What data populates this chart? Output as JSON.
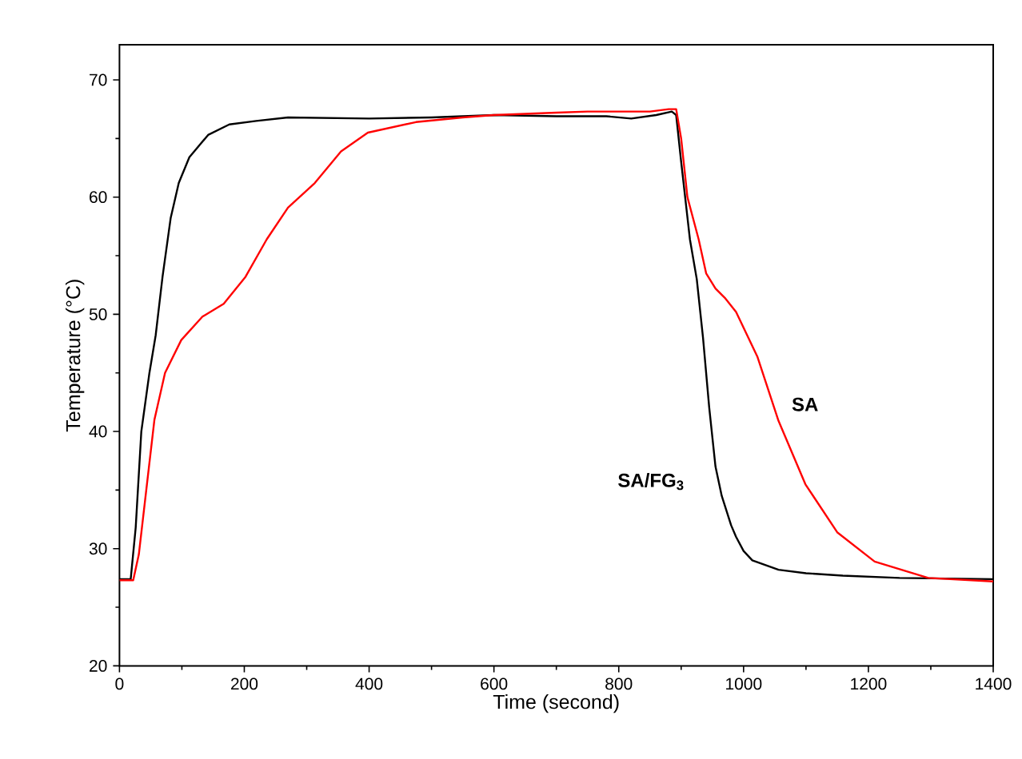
{
  "chart_data": {
    "type": "line",
    "xlabel": "Time (second)",
    "ylabel": "Temperature (°C)",
    "xlim": [
      0,
      1400
    ],
    "ylim": [
      20,
      73
    ],
    "xticks": [
      0,
      200,
      400,
      600,
      800,
      1000,
      1200,
      1400
    ],
    "yticks": [
      20,
      30,
      40,
      50,
      60,
      70
    ],
    "grid": false,
    "marker": "none",
    "line_style": "solid",
    "series": [
      {
        "name": "SA/FG$_{3}$",
        "color": "#000000",
        "x": [
          0,
          18,
          26,
          35,
          48,
          58,
          69,
          82,
          95,
          112,
          142,
          176,
          219,
          270,
          400,
          500,
          600,
          700,
          780,
          820,
          860,
          885,
          892,
          900,
          914,
          925,
          935,
          945,
          955,
          965,
          980,
          988,
          1000,
          1014,
          1056,
          1100,
          1159,
          1250,
          1400
        ],
        "values": [
          27.4,
          27.4,
          31.8,
          40,
          45,
          48.2,
          53.2,
          58.2,
          61.2,
          63.4,
          65.3,
          66.2,
          66.5,
          66.8,
          66.7,
          66.8,
          67,
          66.9,
          66.9,
          66.7,
          67,
          67.3,
          67,
          63,
          56.4,
          53,
          48,
          42,
          37,
          34.5,
          32,
          31,
          29.8,
          29,
          28.2,
          27.9,
          27.7,
          27.5,
          27.4
        ]
      },
      {
        "name": "SA",
        "color": "#ff0000",
        "x": [
          0,
          22,
          31,
          44,
          56,
          73,
          99,
          133,
          167,
          202,
          236,
          270,
          313,
          355,
          398,
          475,
          550,
          600,
          700,
          750,
          800,
          850,
          880,
          892,
          900,
          910,
          928,
          940,
          955,
          970,
          988,
          1022,
          1056,
          1099,
          1150,
          1210,
          1296,
          1400
        ],
        "values": [
          27.3,
          27.3,
          29.5,
          35.5,
          41,
          45,
          47.8,
          49.8,
          50.9,
          53.2,
          56.4,
          59.1,
          61.2,
          63.9,
          65.5,
          66.4,
          66.8,
          67,
          67.2,
          67.3,
          67.3,
          67.3,
          67.5,
          67.5,
          65,
          60,
          56.4,
          53.5,
          52.2,
          51.4,
          50.2,
          46.4,
          40.9,
          35.5,
          31.4,
          28.9,
          27.5,
          27.2
        ]
      }
    ]
  }
}
